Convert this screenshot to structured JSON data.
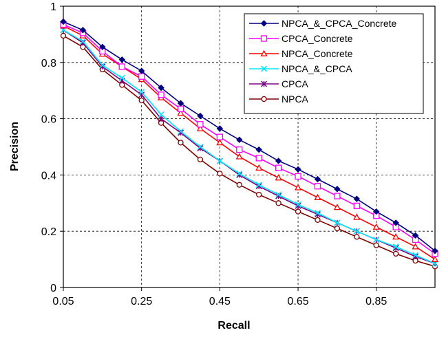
{
  "chart_data": {
    "type": "line",
    "title": "",
    "xlabel": "Recall",
    "ylabel": "Precision",
    "xlim": [
      0.05,
      1.0
    ],
    "ylim": [
      0,
      1
    ],
    "x_ticks": [
      "0.05",
      "0.25",
      "0.45",
      "0.65",
      "0.85"
    ],
    "y_ticks": [
      "0",
      "0.2",
      "0.4",
      "0.6",
      "0.8",
      "1"
    ],
    "grid": true,
    "legend_position": "top-right",
    "x": [
      0.05,
      0.1,
      0.15,
      0.2,
      0.25,
      0.3,
      0.35,
      0.4,
      0.45,
      0.5,
      0.55,
      0.6,
      0.65,
      0.7,
      0.75,
      0.8,
      0.85,
      0.9,
      0.95,
      1.0
    ],
    "series": [
      {
        "name": "NPCA_&_CPCA_Concrete",
        "color": "#000080",
        "marker": "diamond",
        "values": [
          0.945,
          0.915,
          0.855,
          0.81,
          0.77,
          0.71,
          0.655,
          0.61,
          0.565,
          0.525,
          0.49,
          0.45,
          0.42,
          0.385,
          0.35,
          0.315,
          0.27,
          0.23,
          0.185,
          0.13
        ]
      },
      {
        "name": "CPCA_Concrete",
        "color": "#ff00ff",
        "marker": "square",
        "values": [
          0.935,
          0.905,
          0.84,
          0.785,
          0.75,
          0.685,
          0.635,
          0.58,
          0.535,
          0.49,
          0.46,
          0.425,
          0.395,
          0.36,
          0.325,
          0.29,
          0.255,
          0.215,
          0.17,
          0.12
        ]
      },
      {
        "name": "NPCA_Concrete",
        "color": "#ff0000",
        "marker": "triangle",
        "values": [
          0.93,
          0.895,
          0.83,
          0.785,
          0.74,
          0.675,
          0.62,
          0.565,
          0.515,
          0.465,
          0.425,
          0.39,
          0.355,
          0.32,
          0.285,
          0.25,
          0.215,
          0.18,
          0.145,
          0.1
        ]
      },
      {
        "name": "NPCA_&_CPCA",
        "color": "#00e5ff",
        "marker": "x",
        "values": [
          0.915,
          0.875,
          0.79,
          0.745,
          0.695,
          0.615,
          0.555,
          0.5,
          0.45,
          0.405,
          0.365,
          0.33,
          0.295,
          0.265,
          0.23,
          0.2,
          0.17,
          0.145,
          0.115,
          0.085
        ]
      },
      {
        "name": "CPCA",
        "color": "#800080",
        "marker": "star",
        "values": [
          0.915,
          0.87,
          0.785,
          0.735,
          0.685,
          0.6,
          0.55,
          0.495,
          0.45,
          0.4,
          0.36,
          0.325,
          0.29,
          0.26,
          0.23,
          0.2,
          0.17,
          0.14,
          0.11,
          0.085
        ]
      },
      {
        "name": "NPCA",
        "color": "#800000",
        "marker": "circle",
        "values": [
          0.895,
          0.855,
          0.775,
          0.72,
          0.665,
          0.585,
          0.515,
          0.455,
          0.405,
          0.365,
          0.33,
          0.3,
          0.27,
          0.24,
          0.21,
          0.18,
          0.15,
          0.12,
          0.095,
          0.075
        ]
      }
    ]
  }
}
